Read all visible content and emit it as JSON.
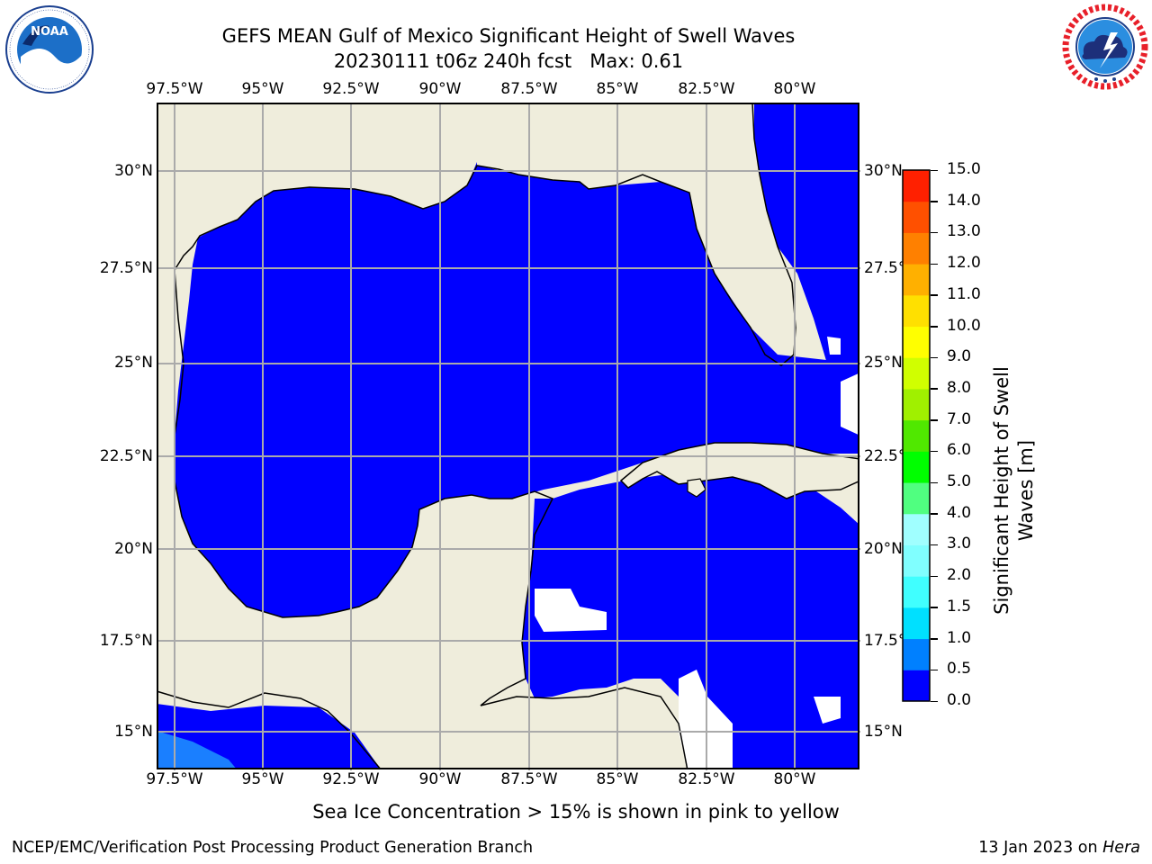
{
  "title": {
    "line1": "GEFS MEAN Gulf of Mexico Significant Height of Swell Waves",
    "line2": "20230111 t06z 240h fcst   Max: 0.61"
  },
  "logos": {
    "left": {
      "text": "NOAA",
      "ring_text": "NATIONAL OCEANIC AND ATMOSPHERIC ADMINISTRATION · U.S. DEPARTMENT OF COMMERCE"
    },
    "right": {
      "ring_text": "NATIONAL WEATHER SERVICE"
    }
  },
  "map": {
    "lon_labels": [
      "97.5°W",
      "95°W",
      "92.5°W",
      "90°W",
      "87.5°W",
      "85°W",
      "82.5°W",
      "80°W"
    ],
    "lat_labels": [
      "30°N",
      "27.5°N",
      "25°N",
      "22.5°N",
      "20°N",
      "17.5°N",
      "15°N"
    ],
    "lon_range": [
      -98,
      -78.2
    ],
    "lat_range": [
      14.0,
      31.8
    ],
    "land_color": "#efeddc",
    "ocean_color": "#0000ff",
    "gridline_color": "#aaaaaa",
    "note": "Sea Ice Concentration > 15% is shown in pink to yellow"
  },
  "colorbar": {
    "label": "Significant Height of Swell Waves [m]",
    "ticks": [
      "0.0",
      "0.5",
      "1.0",
      "1.5",
      "2.0",
      "3.0",
      "4.0",
      "5.0",
      "6.0",
      "7.0",
      "8.0",
      "9.0",
      "10.0",
      "11.0",
      "12.0",
      "13.0",
      "14.0",
      "15.0"
    ],
    "colors": [
      "#0000ff",
      "#0080ff",
      "#00e0ff",
      "#40ffff",
      "#80ffff",
      "#a0ffff",
      "#50ff80",
      "#00ff00",
      "#50e800",
      "#a0f000",
      "#d0ff00",
      "#ffff00",
      "#ffe000",
      "#ffb000",
      "#ff8000",
      "#ff5000",
      "#ff2000",
      "#ff0000"
    ]
  },
  "footer": {
    "left": "NCEP/EMC/Verification Post Processing Product Generation Branch",
    "right_prefix": "13 Jan 2023 on ",
    "right_host": "Hera"
  }
}
